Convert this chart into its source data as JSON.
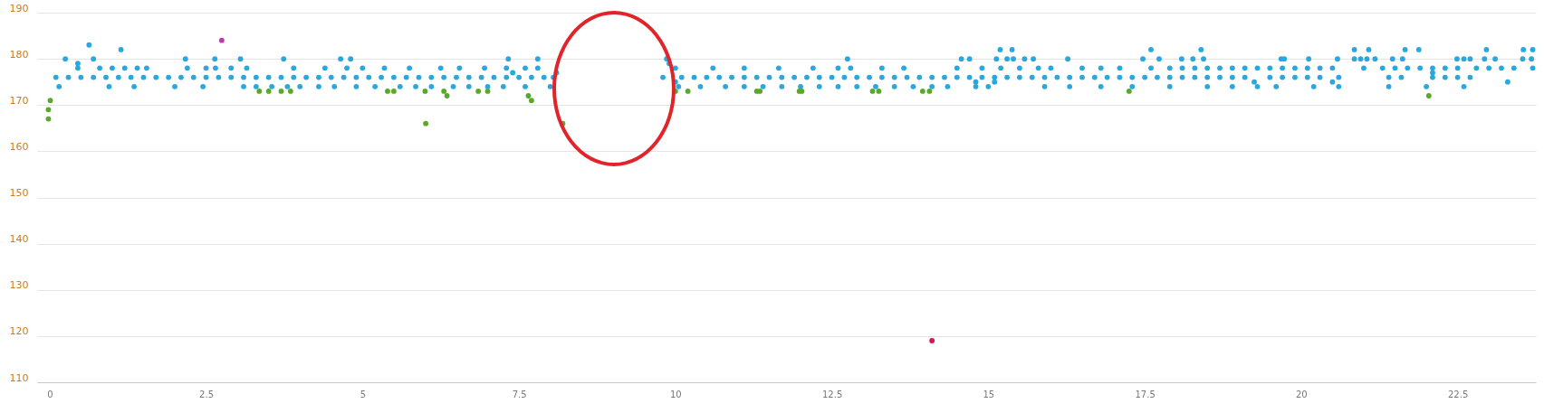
{
  "chart_data": {
    "type": "scatter",
    "marker": "circle",
    "grid": "y",
    "xlim": [
      -0.2,
      23.75
    ],
    "xticks": [
      0,
      2.5,
      5,
      7.5,
      10,
      12.5,
      15,
      17.5,
      20,
      22.5
    ],
    "ylim": [
      110,
      190
    ],
    "yticks": [
      110,
      120,
      130,
      140,
      150,
      160,
      170,
      180,
      190
    ],
    "series": [
      {
        "color": "#29a8df",
        "x": [
          0.1,
          0.3,
          0.5,
          0.7,
          0.9,
          1.1,
          1.3,
          1.5,
          1.7,
          1.9,
          2.1,
          2.3,
          2.5,
          2.7,
          2.9,
          3.1,
          3.3,
          3.5,
          3.7,
          3.9,
          4.1,
          4.3,
          4.5,
          4.7,
          4.9,
          5.1,
          5.3,
          5.5,
          5.7,
          5.9,
          6.1,
          6.3,
          6.5,
          6.7,
          6.9,
          7.1,
          7.3,
          7.5,
          7.7,
          7.9,
          8.05,
          9.8,
          10.1,
          10.3,
          10.5,
          10.7,
          10.9,
          11.1,
          11.3,
          11.5,
          11.7,
          11.9,
          12.1,
          12.3,
          12.5,
          12.7,
          12.9,
          13.1,
          13.3,
          13.5,
          13.7,
          13.9,
          14.1,
          14.3,
          14.5,
          14.7,
          14.9,
          15.1,
          15.3,
          15.5,
          15.7,
          15.9,
          16.1,
          16.3,
          16.5,
          16.7,
          16.9,
          17.1,
          17.3,
          17.5,
          17.7,
          17.9,
          18.1,
          18.3,
          18.5,
          18.7,
          18.9,
          19.1,
          19.5,
          19.7,
          19.9,
          20.1,
          20.3,
          20.6,
          21.4,
          21.6,
          22.1,
          22.3,
          22.5,
          22.7,
          0.15,
          0.95,
          1.35,
          2.0,
          2.45,
          3.1,
          3.3,
          3.55,
          3.8,
          4.0,
          4.3,
          4.55,
          4.9,
          5.2,
          5.6,
          5.85,
          6.1,
          6.45,
          6.7,
          7.0,
          7.25,
          7.6,
          8.0,
          10.05,
          10.4,
          10.8,
          11.1,
          11.4,
          11.7,
          12.0,
          12.3,
          12.6,
          12.9,
          13.2,
          13.5,
          13.8,
          14.1,
          14.35,
          14.8,
          15.0,
          15.9,
          16.3,
          16.8,
          17.3,
          17.9,
          18.5,
          18.9,
          19.3,
          19.6,
          20.2,
          20.6,
          21.4,
          22.0,
          22.6,
          0.45,
          0.8,
          1.0,
          1.2,
          1.4,
          1.55,
          2.2,
          2.5,
          2.65,
          2.9,
          3.15,
          3.9,
          4.4,
          4.75,
          5.0,
          5.35,
          5.75,
          6.25,
          6.55,
          6.95,
          7.3,
          7.6,
          7.8,
          10.0,
          10.6,
          11.1,
          11.65,
          12.2,
          12.6,
          12.8,
          13.3,
          13.65,
          14.5,
          14.9,
          15.2,
          15.5,
          15.8,
          16.0,
          16.5,
          16.8,
          17.1,
          17.6,
          17.9,
          18.1,
          18.3,
          18.5,
          18.7,
          18.9,
          19.1,
          19.3,
          19.5,
          19.7,
          19.9,
          20.1,
          20.3,
          20.5,
          21.0,
          21.3,
          21.5,
          21.7,
          21.9,
          22.1,
          22.3,
          22.5,
          22.8,
          23.0,
          23.2,
          23.4,
          23.7,
          0.7,
          2.17,
          2.64,
          3.05,
          3.74,
          4.65,
          4.81,
          7.33,
          7.8,
          9.86,
          12.75,
          14.57,
          14.7,
          15.13,
          15.3,
          15.4,
          15.58,
          15.72,
          16.27,
          17.47,
          17.73,
          18.09,
          18.27,
          18.44,
          19.68,
          19.73,
          20.12,
          20.58,
          20.85,
          20.95,
          21.05,
          21.18,
          21.46,
          21.62,
          22.49,
          22.6,
          22.7,
          22.93,
          23.1,
          23.54,
          23.68,
          0.25,
          1.14,
          15.19,
          15.38,
          17.6,
          18.4,
          20.85,
          21.08,
          21.66,
          21.88,
          22.96,
          23.7,
          23.55,
          0.63,
          0.45,
          7.4,
          8.1,
          9.9,
          10.0,
          14.8,
          15.1,
          19.25,
          20.5,
          22.1,
          23.3
        ],
        "values": [
          176,
          176,
          176,
          176,
          176,
          176,
          176,
          176,
          176,
          176,
          176,
          176,
          176,
          176,
          176,
          176,
          176,
          176,
          176,
          176,
          176,
          176,
          176,
          176,
          176,
          176,
          176,
          176,
          176,
          176,
          176,
          176,
          176,
          176,
          176,
          176,
          176,
          176,
          176,
          176,
          176,
          176,
          176,
          176,
          176,
          176,
          176,
          176,
          176,
          176,
          176,
          176,
          176,
          176,
          176,
          176,
          176,
          176,
          176,
          176,
          176,
          176,
          176,
          176,
          176,
          176,
          176,
          176,
          176,
          176,
          176,
          176,
          176,
          176,
          176,
          176,
          176,
          176,
          176,
          176,
          176,
          176,
          176,
          176,
          176,
          176,
          176,
          176,
          176,
          176,
          176,
          176,
          176,
          176,
          176,
          176,
          176,
          176,
          176,
          176,
          174,
          174,
          174,
          174,
          174,
          174,
          174,
          174,
          174,
          174,
          174,
          174,
          174,
          174,
          174,
          174,
          174,
          174,
          174,
          174,
          174,
          174,
          174,
          174,
          174,
          174,
          174,
          174,
          174,
          174,
          174,
          174,
          174,
          174,
          174,
          174,
          174,
          174,
          174,
          174,
          174,
          174,
          174,
          174,
          174,
          174,
          174,
          174,
          174,
          174,
          174,
          174,
          174,
          174,
          178,
          178,
          178,
          178,
          178,
          178,
          178,
          178,
          178,
          178,
          178,
          178,
          178,
          178,
          178,
          178,
          178,
          178,
          178,
          178,
          178,
          178,
          178,
          178,
          178,
          178,
          178,
          178,
          178,
          178,
          178,
          178,
          178,
          178,
          178,
          178,
          178,
          178,
          178,
          178,
          178,
          178,
          178,
          178,
          178,
          178,
          178,
          178,
          178,
          178,
          178,
          178,
          178,
          178,
          178,
          178,
          178,
          178,
          178,
          178,
          178,
          178,
          178,
          178,
          178,
          178,
          178,
          178,
          178,
          180,
          180,
          180,
          180,
          180,
          180,
          180,
          180,
          180,
          180,
          180,
          180,
          180,
          180,
          180,
          180,
          180,
          180,
          180,
          180,
          180,
          180,
          180,
          180,
          180,
          180,
          180,
          180,
          180,
          180,
          180,
          180,
          180,
          180,
          180,
          180,
          180,
          180,
          180,
          180,
          180,
          180,
          182,
          182,
          182,
          182,
          182,
          182,
          182,
          182,
          182,
          182,
          182,
          182,
          183,
          179,
          177,
          177,
          179,
          175,
          175,
          175,
          175,
          175,
          177,
          175
        ]
      },
      {
        "color": "#5aa829",
        "x": [
          0.01,
          -0.02,
          -0.02,
          3.35,
          3.5,
          3.7,
          3.85,
          5.4,
          5.5,
          6.01,
          6.0,
          6.3,
          6.35,
          6.85,
          7.0,
          7.65,
          7.7,
          8.2,
          10.0,
          10.2,
          11.3,
          11.35,
          11.98,
          12.02,
          13.15,
          13.25,
          13.95,
          14.06,
          17.25,
          22.04
        ],
        "values": [
          171,
          169,
          167,
          173,
          173,
          173,
          173,
          173,
          173,
          166,
          173,
          173,
          172,
          173,
          173,
          172,
          171,
          166,
          173,
          173,
          173,
          173,
          173,
          173,
          173,
          173,
          173,
          173,
          173,
          172
        ]
      },
      {
        "color": "#c03aa8",
        "x": [
          2.75
        ],
        "values": [
          184
        ]
      },
      {
        "color": "#e0124a",
        "x": [
          14.1
        ],
        "values": [
          119
        ]
      }
    ]
  }
}
